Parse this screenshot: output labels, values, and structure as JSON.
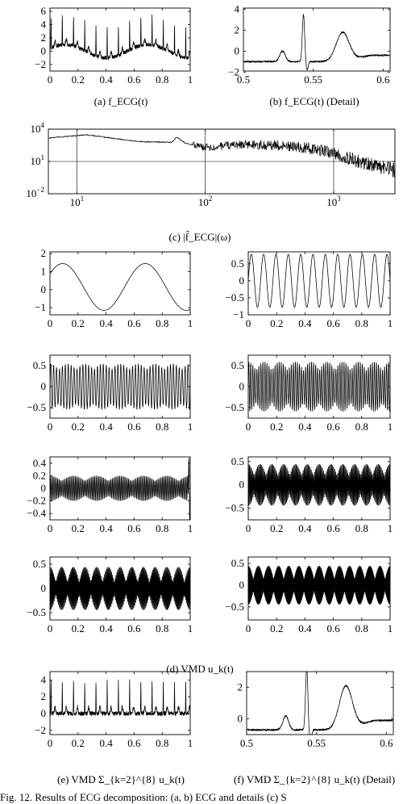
{
  "figure": {
    "captions": {
      "a": "(a) f_ECG(t)",
      "b": "(b) f_ECG(t) (Detail)",
      "c": "(c) |f̂_ECG|(ω)",
      "d": "(d) VMD u_k(t)",
      "e": "(e) VMD Σ_{k=2}^{8} u_k(t)",
      "f": "(f) VMD Σ_{k=2}^{8} u_k(t) (Detail)"
    },
    "bottom_text": "Fig. 12.  Results of ECG decomposition: (a, b) ECG and details (c) S"
  },
  "chart_data": [
    {
      "id": "a",
      "type": "line",
      "title": "(a) f_ECG(t)",
      "xlim": [
        0,
        1
      ],
      "ylim": [
        -3,
        6.5
      ],
      "xticks": [
        0,
        0.2,
        0.4,
        0.6,
        0.8,
        1
      ],
      "xticklabels": [
        "0",
        "0.2",
        "0.4",
        "0.6",
        "0.8",
        "1"
      ],
      "yticks": [
        -2,
        0,
        2,
        4,
        6
      ],
      "yticklabels": [
        "−2",
        "0",
        "2",
        "4",
        "6"
      ],
      "series": [
        {
          "kind": "ecg",
          "baseline_amp": 1.0,
          "baseline_cycles": 1.7,
          "beat_period": 0.08,
          "spike_height": 4.5,
          "noise": 0.3
        }
      ]
    },
    {
      "id": "b",
      "type": "line",
      "title": "(b) f_ECG(t) (Detail)",
      "xlim": [
        0.5,
        0.605
      ],
      "ylim": [
        -1.9,
        4.1
      ],
      "xticks": [
        0.5,
        0.55,
        0.6
      ],
      "xticklabels": [
        "0.5",
        "0.55",
        "0.6"
      ],
      "yticks": [
        -2,
        0,
        2,
        4
      ],
      "yticklabels": [
        "−2",
        "0",
        "2",
        "4"
      ],
      "series": [
        {
          "kind": "beat",
          "baseline": -1.0,
          "p_center": 0.528,
          "p_height": 1.0,
          "r_center": 0.543,
          "r_height": 4.5,
          "t_center": 0.571,
          "t_height": 2.8,
          "tail": -0.4,
          "noise": 0.08
        }
      ]
    },
    {
      "id": "c",
      "type": "line",
      "title": "(c) |f̂_ECG|(ω)",
      "xscale": "log",
      "yscale": "log",
      "xlim": [
        6,
        3000
      ],
      "ylim": [
        0.01,
        10000
      ],
      "xticks": [
        10,
        100,
        1000
      ],
      "xticklabels": [
        "10^1",
        "10^2",
        "10^3"
      ],
      "yticks": [
        0.01,
        10,
        10000
      ],
      "yticklabels": [
        "10^-2",
        "10^1",
        "10^4"
      ],
      "vlines": [
        10,
        100,
        1000
      ],
      "hlines": [
        10,
        10000
      ],
      "series": [
        {
          "kind": "spectrum",
          "points": [
            [
              6,
              1500
            ],
            [
              12,
              3000
            ],
            [
              30,
              700
            ],
            [
              55,
              600
            ],
            [
              60,
              1800
            ],
            [
              70,
              500
            ],
            [
              100,
              200
            ],
            [
              200,
              400
            ],
            [
              400,
              300
            ],
            [
              700,
              150
            ],
            [
              1000,
              60
            ],
            [
              1500,
              12
            ],
            [
              2000,
              4
            ],
            [
              3000,
              1.5
            ]
          ]
        }
      ]
    },
    {
      "id": "d1",
      "type": "line",
      "title": "(d) VMD u_k(t)",
      "xlim": [
        0,
        1
      ],
      "ylim": [
        -1.4,
        2.1
      ],
      "xticks": [
        0,
        0.2,
        0.4,
        0.6,
        0.8,
        1
      ],
      "xticklabels": [
        "0",
        "0.2",
        "0.4",
        "0.6",
        "0.8",
        "1"
      ],
      "yticks": [
        -1,
        0,
        1,
        2
      ],
      "yticklabels": [
        "−1",
        "0",
        "1",
        "2"
      ],
      "series": [
        {
          "kind": "sine",
          "amp": 1.3,
          "cycles": 1.7,
          "phase": 0.6,
          "offset": 0.15,
          "env": 0.0
        }
      ]
    },
    {
      "id": "d2",
      "type": "line",
      "title": "(d) VMD u_k(t)",
      "xlim": [
        0,
        1
      ],
      "ylim": [
        -1.0,
        0.85
      ],
      "xticks": [
        0,
        0.2,
        0.4,
        0.6,
        0.8,
        1
      ],
      "xticklabels": [
        "0",
        "0.2",
        "0.4",
        "0.6",
        "0.8",
        "1"
      ],
      "yticks": [
        -1,
        -0.5,
        0,
        0.5
      ],
      "yticklabels": [
        "−1",
        "−0.5",
        "0",
        "0.5"
      ],
      "series": [
        {
          "kind": "sine",
          "amp": 0.78,
          "cycles": 11.5,
          "phase": 0.0,
          "offset": 0.0,
          "env": 0.0
        }
      ]
    },
    {
      "id": "d3",
      "type": "line",
      "title": "(d) VMD u_k(t)",
      "xlim": [
        0,
        1
      ],
      "ylim": [
        -0.75,
        0.75
      ],
      "xticks": [
        0,
        0.2,
        0.4,
        0.6,
        0.8,
        1
      ],
      "xticklabels": [
        "0",
        "0.2",
        "0.4",
        "0.6",
        "0.8",
        "1"
      ],
      "yticks": [
        -0.5,
        0,
        0.5
      ],
      "yticklabels": [
        "−0.5",
        "0",
        "0.5"
      ],
      "series": [
        {
          "kind": "sine",
          "amp": 0.55,
          "cycles": 48,
          "phase": 0.0,
          "offset": 0.0,
          "env": 0.25,
          "env_cycles": 8
        }
      ]
    },
    {
      "id": "d4",
      "type": "line",
      "title": "(d) VMD u_k(t)",
      "xlim": [
        0,
        1
      ],
      "ylim": [
        -0.75,
        0.75
      ],
      "xticks": [
        0,
        0.2,
        0.4,
        0.6,
        0.8,
        1
      ],
      "xticklabels": [
        "0",
        "0.2",
        "0.4",
        "0.6",
        "0.8",
        "1"
      ],
      "yticks": [
        -0.5,
        0,
        0.5
      ],
      "yticklabels": [
        "−0.5",
        "0",
        "0.5"
      ],
      "series": [
        {
          "kind": "sine",
          "amp": 0.6,
          "cycles": 70,
          "phase": 0.0,
          "offset": 0.0,
          "env": 0.35,
          "env_cycles": 9
        }
      ]
    },
    {
      "id": "d5",
      "type": "line",
      "title": "(d) VMD u_k(t)",
      "xlim": [
        0,
        1
      ],
      "ylim": [
        -0.5,
        0.5
      ],
      "xticks": [
        0,
        0.2,
        0.4,
        0.6,
        0.8,
        1
      ],
      "xticklabels": [
        "0",
        "0.2",
        "0.4",
        "0.6",
        "0.8",
        "1"
      ],
      "yticks": [
        -0.4,
        -0.2,
        0,
        0.2,
        0.4
      ],
      "yticklabels": [
        "−0.4",
        "−0.2",
        "0",
        "0.2",
        "0.4"
      ],
      "series": [
        {
          "kind": "sine",
          "amp": 0.2,
          "cycles": 95,
          "phase": 0.0,
          "offset": 0.0,
          "env": 0.4,
          "env_cycles": 6,
          "edge_spike": 0.45
        }
      ]
    },
    {
      "id": "d6",
      "type": "line",
      "title": "(d) VMD u_k(t)",
      "xlim": [
        0,
        1
      ],
      "ylim": [
        -0.75,
        0.6
      ],
      "xticks": [
        0,
        0.2,
        0.4,
        0.6,
        0.8,
        1
      ],
      "xticklabels": [
        "0",
        "0.2",
        "0.4",
        "0.6",
        "0.8",
        "1"
      ],
      "yticks": [
        -0.5,
        0,
        0.5
      ],
      "yticklabels": [
        "−0.5",
        "0",
        "0.5"
      ],
      "series": [
        {
          "kind": "sine",
          "amp": 0.45,
          "cycles": 140,
          "phase": 0.0,
          "offset": 0.0,
          "env": 0.55,
          "env_cycles": 12
        }
      ]
    },
    {
      "id": "d7",
      "type": "line",
      "title": "(d) VMD u_k(t)",
      "xlim": [
        0,
        1
      ],
      "ylim": [
        -0.65,
        0.65
      ],
      "xticks": [
        0,
        0.2,
        0.4,
        0.6,
        0.8,
        1
      ],
      "xticklabels": [
        "0",
        "0.2",
        "0.4",
        "0.6",
        "0.8",
        "1"
      ],
      "yticks": [
        -0.5,
        0,
        0.5
      ],
      "yticklabels": [
        "−0.5",
        "0",
        "0.5"
      ],
      "series": [
        {
          "kind": "sine",
          "amp": 0.45,
          "cycles": 160,
          "phase": 0.0,
          "offset": 0.0,
          "env": 0.7,
          "env_cycles": 12
        }
      ]
    },
    {
      "id": "d8",
      "type": "line",
      "title": "(d) VMD u_k(t)",
      "xlim": [
        0,
        1
      ],
      "ylim": [
        -0.8,
        0.65
      ],
      "xticks": [
        0,
        0.2,
        0.4,
        0.6,
        0.8,
        1
      ],
      "xticklabels": [
        "0",
        "0.2",
        "0.4",
        "0.6",
        "0.8",
        "1"
      ],
      "yticks": [
        -0.5,
        0,
        0.5
      ],
      "yticklabels": [
        "−0.5",
        "0",
        "0.5"
      ],
      "series": [
        {
          "kind": "sine",
          "amp": 0.45,
          "cycles": 230,
          "phase": 0.0,
          "offset": 0.0,
          "env": 0.7,
          "env_cycles": 14
        }
      ]
    },
    {
      "id": "e",
      "type": "line",
      "title": "(e) VMD Σ_{k=2}^{8} u_k(t)",
      "xlim": [
        0,
        1
      ],
      "ylim": [
        -2.5,
        5
      ],
      "xticks": [
        0,
        0.2,
        0.4,
        0.6,
        0.8,
        1
      ],
      "xticklabels": [
        "0",
        "0.2",
        "0.4",
        "0.6",
        "0.8",
        "1"
      ],
      "yticks": [
        -2,
        0,
        2,
        4
      ],
      "yticklabels": [
        "−2",
        "0",
        "2",
        "4"
      ],
      "series": [
        {
          "kind": "ecg",
          "baseline_amp": 0.0,
          "baseline_cycles": 0,
          "beat_period": 0.08,
          "spike_height": 3.9,
          "noise": 0.25
        }
      ]
    },
    {
      "id": "f",
      "type": "line",
      "title": "(f) VMD Σ_{k=2}^{8} u_k(t) (Detail)",
      "xlim": [
        0.5,
        0.605
      ],
      "ylim": [
        -1.0,
        3.0
      ],
      "xticks": [
        0.5,
        0.55,
        0.6
      ],
      "xticklabels": [
        "0.5",
        "0.55",
        "0.6"
      ],
      "yticks": [
        0,
        2
      ],
      "yticklabels": [
        "0",
        "2"
      ],
      "series": [
        {
          "kind": "beat",
          "baseline": -0.7,
          "p_center": 0.528,
          "p_height": 0.9,
          "r_center": 0.543,
          "r_height": 4.0,
          "t_center": 0.571,
          "t_height": 2.8,
          "tail": -0.1,
          "noise": 0.06
        }
      ]
    }
  ]
}
